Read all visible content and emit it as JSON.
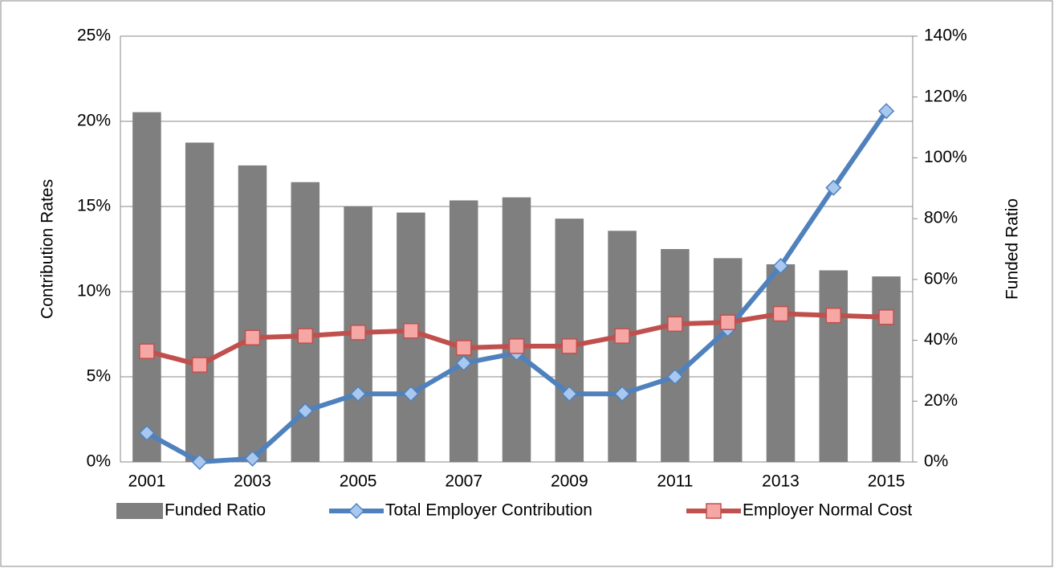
{
  "chart_data": {
    "type": "combo",
    "categories": [
      "2001",
      null,
      "2003",
      null,
      "2005",
      null,
      "2007",
      null,
      "2009",
      null,
      "2011",
      null,
      "2013",
      null,
      "2015"
    ],
    "y_label": "Contribution Rates",
    "y2_label": "Funded Ratio",
    "ylim": [
      0,
      25
    ],
    "yticks": [
      {
        "value": 0,
        "label": "0%"
      },
      {
        "value": 5,
        "label": "5%"
      },
      {
        "value": 10,
        "label": "10%"
      },
      {
        "value": 15,
        "label": "15%"
      },
      {
        "value": 20,
        "label": "20%"
      },
      {
        "value": 25,
        "label": "25%"
      }
    ],
    "y2lim": [
      0,
      140
    ],
    "y2ticks": [
      {
        "value": 0,
        "label": "0%"
      },
      {
        "value": 20,
        "label": "20%"
      },
      {
        "value": 40,
        "label": "40%"
      },
      {
        "value": 60,
        "label": "60%"
      },
      {
        "value": 80,
        "label": "80%"
      },
      {
        "value": 100,
        "label": "100%"
      },
      {
        "value": 120,
        "label": "120%"
      },
      {
        "value": 140,
        "label": "140%"
      }
    ],
    "grid": true,
    "legend": "bottom",
    "series": [
      {
        "name": "Funded Ratio",
        "type": "bar",
        "axis": "y2",
        "color": "#7f7f7f",
        "values": [
          115,
          105,
          97.5,
          92,
          84,
          82,
          86,
          87,
          80,
          76,
          70,
          67,
          65,
          63,
          61
        ]
      },
      {
        "name": "Total Employer Contribution",
        "type": "line",
        "color": "#4f81bd",
        "marker": "diamond",
        "marker_color": "#a9c8f0",
        "values": [
          1.7,
          0,
          0.2,
          3.0,
          4.0,
          4.0,
          5.8,
          6.4,
          4.0,
          4.0,
          5.0,
          7.8,
          11.5,
          16.1,
          20.6
        ]
      },
      {
        "name": "Employer Normal Cost",
        "type": "line",
        "color": "#c0504d",
        "marker": "square",
        "marker_color": "#f4a7a5",
        "values": [
          6.5,
          5.7,
          7.3,
          7.4,
          7.6,
          7.7,
          6.7,
          6.8,
          6.8,
          7.4,
          8.1,
          8.2,
          8.7,
          8.6,
          8.5
        ]
      }
    ]
  }
}
